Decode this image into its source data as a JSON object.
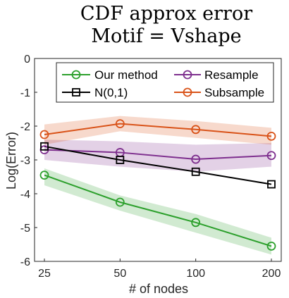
{
  "chart_data": {
    "type": "line",
    "title": [
      "CDF approx error",
      "Motif = Vshape"
    ],
    "xlabel": "# of nodes",
    "ylabel": "Log(Error)",
    "x": [
      25,
      50,
      100,
      200
    ],
    "x_tick_labels": [
      "25",
      "50",
      "100",
      "200"
    ],
    "x_scale": "log2",
    "ylim": [
      -6,
      0
    ],
    "y_ticks": [
      0,
      -1,
      -2,
      -3,
      -4,
      -5,
      -6
    ],
    "y_tick_labels": [
      "0",
      "-1",
      "-2",
      "-3",
      "-4",
      "-5",
      "-6"
    ],
    "grid": false,
    "legend_position": "top",
    "series": [
      {
        "name": "Our method",
        "color": "#2ca02c",
        "marker": "circle",
        "values": [
          -3.45,
          -4.25,
          -4.85,
          -5.55
        ],
        "band_low": [
          -3.75,
          -4.5,
          -5.15,
          -5.8
        ],
        "band_high": [
          -3.25,
          -4.05,
          -4.6,
          -5.3
        ]
      },
      {
        "name": "Resample",
        "color": "#7e2f8e",
        "marker": "circle",
        "values": [
          -2.7,
          -2.78,
          -2.98,
          -2.87
        ],
        "band_low": [
          -3.0,
          -3.2,
          -3.35,
          -3.2
        ],
        "band_high": [
          -2.4,
          -2.45,
          -2.55,
          -2.5
        ]
      },
      {
        "name": "N(0,1)",
        "color": "#000000",
        "marker": "square",
        "values": [
          -2.6,
          -3.0,
          -3.35,
          -3.72
        ]
      },
      {
        "name": "Subsample",
        "color": "#d95319",
        "marker": "circle",
        "values": [
          -2.25,
          -1.93,
          -2.1,
          -2.3
        ],
        "band_low": [
          -2.55,
          -2.15,
          -2.35,
          -2.55
        ],
        "band_high": [
          -1.95,
          -1.7,
          -1.85,
          -2.05
        ]
      }
    ]
  }
}
